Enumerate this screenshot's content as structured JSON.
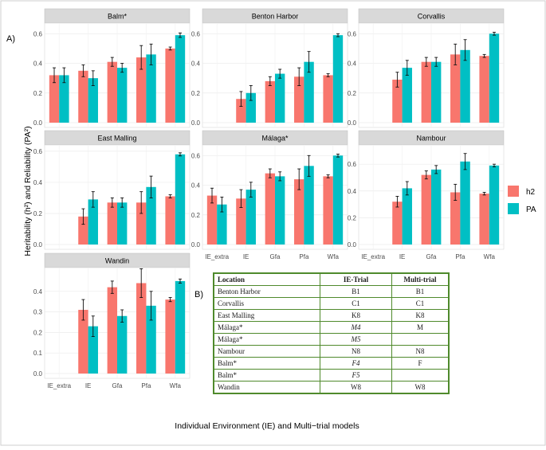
{
  "panel_label_a": "A)",
  "panel_label_b": "B)",
  "y_axis_label": "Heritability (h²) and Reliability (PA²)",
  "x_axis_label": "Individual Environment (IE) and Multi−trial models",
  "legend": [
    {
      "name": "h2",
      "color": "#f8766d"
    },
    {
      "name": "PA",
      "color": "#00bfc4"
    }
  ],
  "chart_data": [
    {
      "type": "bar",
      "title": "Balm*",
      "categories": [
        "IE_extra",
        "IE",
        "Gfa",
        "Pfa",
        "Wfa"
      ],
      "ylim": [
        0,
        0.65
      ],
      "yticks": [
        "0.0",
        "0.2",
        "0.4",
        "0.6"
      ],
      "grid": true,
      "series": [
        {
          "name": "h2",
          "values": [
            null,
            0.35,
            0.41,
            0.44,
            0.5
          ],
          "err": [
            null,
            0.04,
            0.03,
            0.08,
            0.01
          ]
        },
        {
          "name": "PA",
          "values": [
            0.32,
            0.3,
            0.37,
            0.46,
            0.59
          ],
          "err": [
            0.05,
            0.05,
            0.03,
            0.07,
            0.015
          ]
        }
      ],
      "note_first_h2": 0.32,
      "note_first_h2_err": 0.05
    },
    {
      "type": "bar",
      "title": "Benton Harbor",
      "categories": [
        "IE_extra",
        "IE",
        "Gfa",
        "Pfa",
        "Wfa"
      ],
      "ylim": [
        0,
        0.65
      ],
      "yticks": [
        "0.0",
        "0.2",
        "0.4",
        "0.6"
      ],
      "grid": true,
      "series": [
        {
          "name": "h2",
          "values": [
            null,
            0.16,
            0.28,
            0.31,
            0.32
          ],
          "err": [
            null,
            0.05,
            0.03,
            0.06,
            0.01
          ]
        },
        {
          "name": "PA",
          "values": [
            null,
            0.2,
            0.33,
            0.41,
            0.59
          ],
          "err": [
            null,
            0.05,
            0.03,
            0.07,
            0.01
          ]
        }
      ]
    },
    {
      "type": "bar",
      "title": "Corvallis",
      "categories": [
        "IE_extra",
        "IE",
        "Gfa",
        "Pfa",
        "Wfa"
      ],
      "ylim": [
        0,
        0.65
      ],
      "yticks": [
        "0.0",
        "0.2",
        "0.4",
        "0.6"
      ],
      "grid": true,
      "series": [
        {
          "name": "h2",
          "values": [
            null,
            0.29,
            0.41,
            0.46,
            0.45
          ],
          "err": [
            null,
            0.05,
            0.03,
            0.07,
            0.01
          ]
        },
        {
          "name": "PA",
          "values": [
            null,
            0.37,
            0.41,
            0.49,
            0.6
          ],
          "err": [
            null,
            0.05,
            0.03,
            0.07,
            0.01
          ]
        }
      ]
    },
    {
      "type": "bar",
      "title": "East Malling",
      "categories": [
        "IE_extra",
        "IE",
        "Gfa",
        "Pfa",
        "Wfa"
      ],
      "ylim": [
        0,
        0.62
      ],
      "yticks": [
        "0.0",
        "0.2",
        "0.4",
        "0.6"
      ],
      "grid": true,
      "series": [
        {
          "name": "h2",
          "values": [
            null,
            0.18,
            0.27,
            0.27,
            0.31
          ],
          "err": [
            null,
            0.05,
            0.03,
            0.07,
            0.01
          ]
        },
        {
          "name": "PA",
          "values": [
            null,
            0.29,
            0.27,
            0.37,
            0.58
          ],
          "err": [
            null,
            0.05,
            0.03,
            0.07,
            0.01
          ]
        }
      ]
    },
    {
      "type": "bar",
      "title": "Málaga*",
      "categories": [
        "IE_extra",
        "IE",
        "Gfa",
        "Pfa",
        "Wfa"
      ],
      "ylim": [
        0,
        0.65
      ],
      "yticks": [
        "0.0",
        "0.2",
        "0.4",
        "0.6"
      ],
      "grid": true,
      "series": [
        {
          "name": "h2",
          "values": [
            0.33,
            0.31,
            0.48,
            0.44,
            0.46
          ],
          "err": [
            0.05,
            0.06,
            0.03,
            0.07,
            0.01
          ]
        },
        {
          "name": "PA",
          "values": [
            0.27,
            0.37,
            0.46,
            0.53,
            0.6
          ],
          "err": [
            0.05,
            0.05,
            0.03,
            0.07,
            0.01
          ]
        }
      ]
    },
    {
      "type": "bar",
      "title": "Nambour",
      "categories": [
        "IE_extra",
        "IE",
        "Gfa",
        "Pfa",
        "Wfa"
      ],
      "ylim": [
        0,
        0.72
      ],
      "yticks": [
        "0.0",
        "0.2",
        "0.4",
        "0.6"
      ],
      "grid": true,
      "series": [
        {
          "name": "h2",
          "values": [
            null,
            0.32,
            0.52,
            0.39,
            0.38
          ],
          "err": [
            null,
            0.04,
            0.03,
            0.06,
            0.01
          ]
        },
        {
          "name": "PA",
          "values": [
            null,
            0.42,
            0.56,
            0.62,
            0.59
          ],
          "err": [
            null,
            0.05,
            0.03,
            0.06,
            0.01
          ]
        }
      ]
    },
    {
      "type": "bar",
      "title": "Wandin",
      "categories": [
        "IE_extra",
        "IE",
        "Gfa",
        "Pfa",
        "Wfa"
      ],
      "ylim": [
        0,
        0.5
      ],
      "yticks": [
        "0.0",
        "0.1",
        "0.2",
        "0.3",
        "0.4"
      ],
      "grid": true,
      "series": [
        {
          "name": "h2",
          "values": [
            null,
            0.31,
            0.42,
            0.44,
            0.36
          ],
          "err": [
            null,
            0.05,
            0.03,
            0.07,
            0.01
          ]
        },
        {
          "name": "PA",
          "values": [
            null,
            0.23,
            0.28,
            0.33,
            0.45
          ],
          "err": [
            null,
            0.05,
            0.03,
            0.07,
            0.01
          ]
        }
      ]
    }
  ],
  "table": {
    "headers": [
      "Location",
      "IE-Trial",
      "Multi-trial"
    ],
    "rows": [
      [
        "Benton Harbor",
        "B1",
        "B1"
      ],
      [
        "Corvallis",
        "C1",
        "C1"
      ],
      [
        "East Malling",
        "K8",
        "K8"
      ],
      [
        "Málaga*",
        "M4",
        "M"
      ],
      [
        "Málaga*",
        "M5",
        ""
      ],
      [
        "Nambour",
        "N8",
        "N8"
      ],
      [
        "Balm*",
        "F4",
        "F"
      ],
      [
        "Balm*",
        "F5",
        ""
      ],
      [
        "Wandin",
        "W8",
        "W8"
      ]
    ],
    "italic_ie": [
      false,
      false,
      false,
      true,
      true,
      false,
      true,
      true,
      false
    ]
  }
}
